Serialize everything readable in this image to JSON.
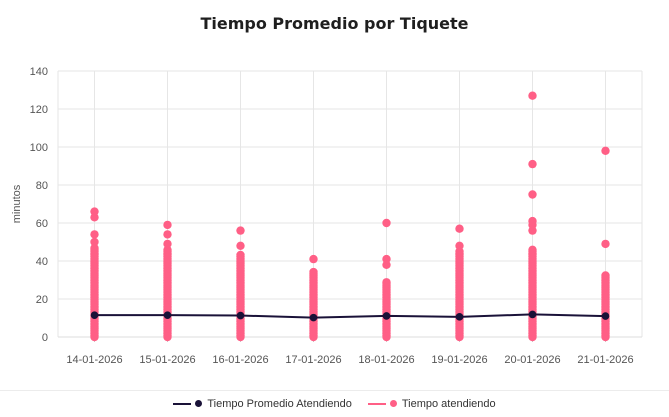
{
  "chart_data": {
    "type": "scatter",
    "title": "Tiempo Promedio por Tiquete",
    "xlabel": "",
    "ylabel": "minutos",
    "ylim": [
      0,
      140
    ],
    "yticks": [
      0,
      20,
      40,
      60,
      80,
      100,
      120,
      140
    ],
    "categories": [
      "14-01-2026",
      "15-01-2026",
      "16-01-2026",
      "17-01-2026",
      "18-01-2026",
      "19-01-2026",
      "20-01-2026",
      "21-01-2026"
    ],
    "series": [
      {
        "name": "Tiempo Promedio Atendiendo",
        "type": "line",
        "color": "#1a1238",
        "values": [
          11.5,
          11.5,
          11.3,
          10.2,
          11.1,
          10.6,
          11.9,
          11.0
        ]
      },
      {
        "name": "Tiempo atendiendo",
        "type": "scatter",
        "color": "#ff5f86",
        "points": [
          {
            "category": "14-01-2026",
            "min": 0,
            "dense_max": 47,
            "outliers": [
              50,
              54,
              63,
              66
            ]
          },
          {
            "category": "15-01-2026",
            "min": 0,
            "dense_max": 46,
            "outliers": [
              49,
              54,
              59
            ]
          },
          {
            "category": "16-01-2026",
            "min": 0,
            "dense_max": 44,
            "outliers": [
              48,
              56
            ]
          },
          {
            "category": "17-01-2026",
            "min": 0,
            "dense_max": 35,
            "outliers": [
              41
            ]
          },
          {
            "category": "18-01-2026",
            "min": 0,
            "dense_max": 29,
            "outliers": [
              38,
              41,
              60
            ]
          },
          {
            "category": "19-01-2026",
            "min": 0,
            "dense_max": 45,
            "outliers": [
              48,
              57
            ]
          },
          {
            "category": "20-01-2026",
            "min": 0,
            "dense_max": 46,
            "outliers": [
              56,
              59,
              61,
              75,
              91,
              127
            ]
          },
          {
            "category": "21-01-2026",
            "min": 0,
            "dense_max": 33,
            "outliers": [
              49,
              98
            ]
          }
        ]
      }
    ],
    "legend": {
      "position": "bottom-center"
    }
  }
}
